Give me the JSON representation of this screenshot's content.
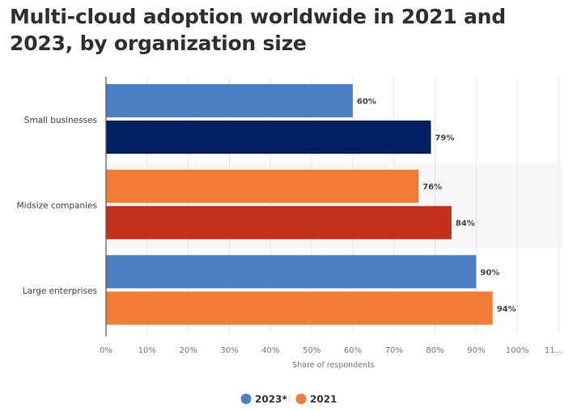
{
  "chart_data": {
    "type": "bar",
    "orientation": "horizontal",
    "title": "Multi-cloud adoption worldwide in 2021 and 2023, by organization size",
    "categories": [
      "Small businesses",
      "Midsize companies",
      "Large enterprises"
    ],
    "series": [
      {
        "name": "2023*",
        "values": [
          60,
          76,
          90
        ],
        "color": "#4a7fc1",
        "bar_colors": [
          "#4a7fc1",
          "#f07c36",
          "#4a7fc1"
        ]
      },
      {
        "name": "2021",
        "values": [
          79,
          84,
          94
        ],
        "color": "#f07c36",
        "bar_colors": [
          "#002060",
          "#c4311a",
          "#f07c36"
        ]
      }
    ],
    "data_labels": [
      [
        "60%",
        "76%",
        "90%"
      ],
      [
        "79%",
        "84%",
        "94%"
      ]
    ],
    "xlabel": "Share of respondents",
    "ylabel": "",
    "xlim": [
      0,
      110
    ],
    "xticks": [
      "0%",
      "10%",
      "20%",
      "30%",
      "40%",
      "50%",
      "60%",
      "70%",
      "80%",
      "90%",
      "100%",
      "11..."
    ],
    "grid": true,
    "legend": {
      "placement": "bottom",
      "entries": [
        {
          "label": "2023*",
          "color": "#4a7fc1"
        },
        {
          "label": "2021",
          "color": "#f07c36"
        }
      ]
    }
  }
}
